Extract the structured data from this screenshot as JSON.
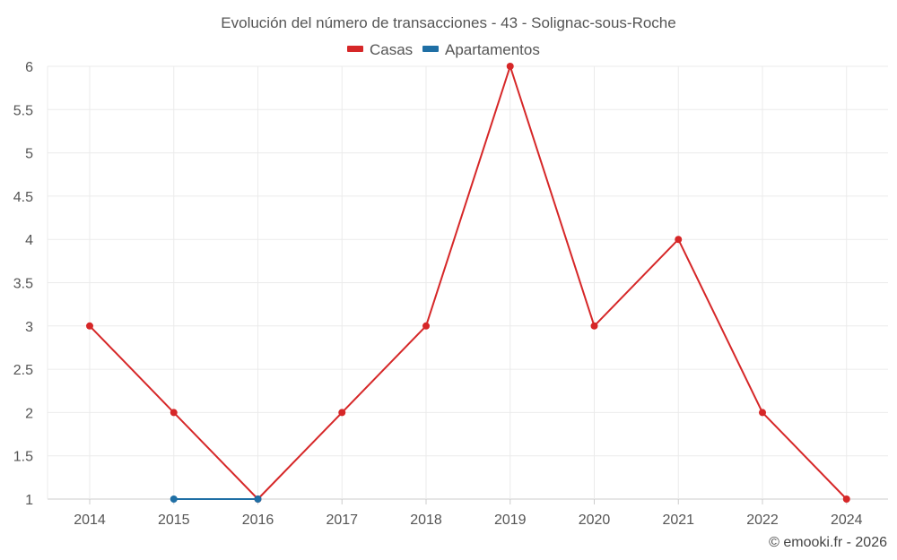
{
  "chart_data": {
    "type": "line",
    "title": "Evolución del número de transacciones - 43 - Solignac-sous-Roche",
    "categories": [
      "2014",
      "2015",
      "2016",
      "2017",
      "2018",
      "2019",
      "2020",
      "2021",
      "2022",
      "2024"
    ],
    "series": [
      {
        "name": "Casas",
        "color": "#d62728",
        "values": [
          3,
          2,
          1,
          2,
          3,
          6,
          3,
          4,
          2,
          1
        ]
      },
      {
        "name": "Apartamentos",
        "color": "#1f6fa5",
        "values": [
          null,
          1,
          1,
          null,
          null,
          null,
          null,
          null,
          null,
          null
        ]
      }
    ],
    "ylim": [
      1,
      6
    ],
    "yticks": [
      "1",
      "1.5",
      "2",
      "2.5",
      "3",
      "3.5",
      "4",
      "4.5",
      "5",
      "5.5",
      "6"
    ],
    "grid": true,
    "legend_position": "top-center",
    "xlabel": "",
    "ylabel": ""
  },
  "credit": "© emooki.fr - 2026"
}
